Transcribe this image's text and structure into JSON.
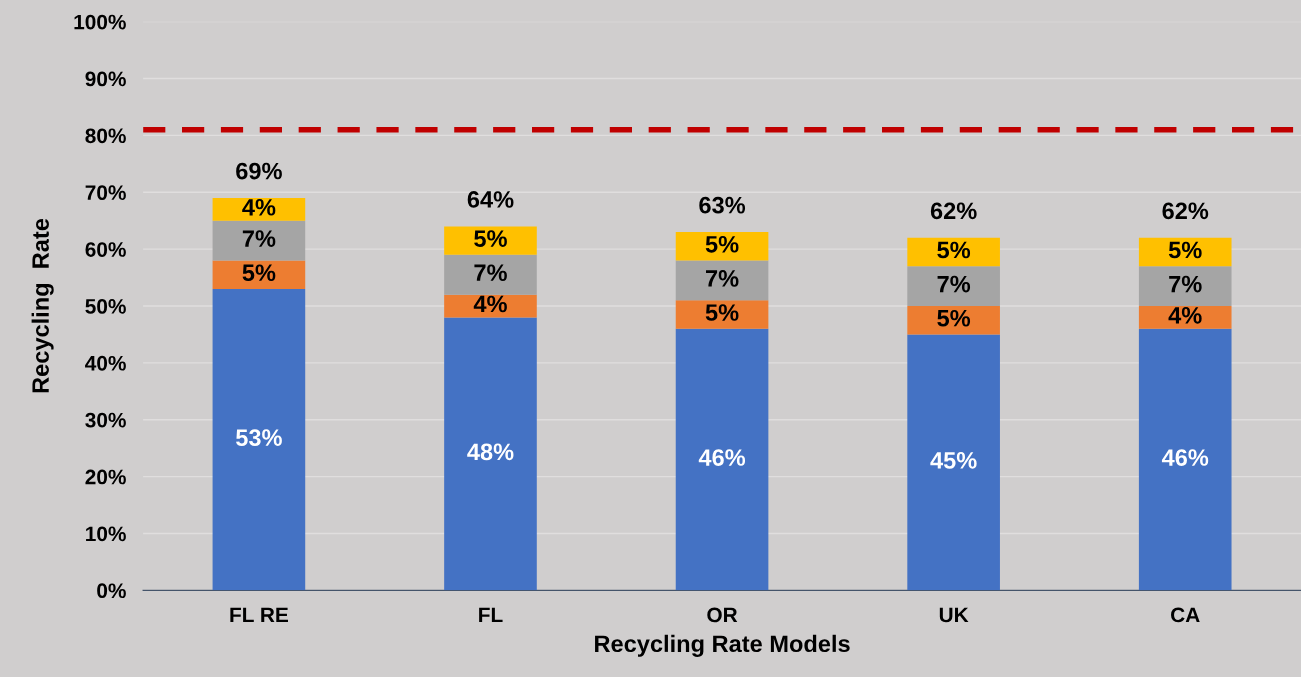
{
  "chart_data": {
    "type": "bar",
    "stacked": true,
    "xlabel": "Recycling Rate Models",
    "ylabel": "Recycling  Rate",
    "categories": [
      "FL RE",
      "FL",
      "OR",
      "UK",
      "CA"
    ],
    "series": [
      {
        "color": "#4472c4",
        "values": [
          53,
          48,
          46,
          45,
          46
        ],
        "value_labels": [
          "53%",
          "48%",
          "46%",
          "45%",
          "46%"
        ]
      },
      {
        "color": "#ed7d31",
        "values": [
          5,
          4,
          5,
          5,
          4
        ],
        "value_labels": [
          "5%",
          "4%",
          "5%",
          "5%",
          "4%"
        ]
      },
      {
        "color": "#a5a5a5",
        "values": [
          7,
          7,
          7,
          7,
          7
        ],
        "value_labels": [
          "7%",
          "7%",
          "7%",
          "7%",
          "7%"
        ]
      },
      {
        "color": "#ffc000",
        "values": [
          4,
          5,
          5,
          5,
          5
        ],
        "value_labels": [
          "4%",
          "5%",
          "5%",
          "5%",
          "5%"
        ]
      }
    ],
    "totals": [
      "69%",
      "64%",
      "63%",
      "62%",
      "62%"
    ],
    "ylim": [
      0,
      100
    ],
    "yticks": [
      {
        "value": 0,
        "label": "0%"
      },
      {
        "value": 10,
        "label": "10%"
      },
      {
        "value": 20,
        "label": "20%"
      },
      {
        "value": 30,
        "label": "30%"
      },
      {
        "value": 40,
        "label": "40%"
      },
      {
        "value": 50,
        "label": "50%"
      },
      {
        "value": 60,
        "label": "60%"
      },
      {
        "value": 70,
        "label": "70%"
      },
      {
        "value": 80,
        "label": "80%"
      },
      {
        "value": 90,
        "label": "90%"
      },
      {
        "value": 100,
        "label": "100%"
      }
    ],
    "ref_lines": [
      {
        "axis": "y",
        "value": 81,
        "color": "#c00000",
        "line_style": "dashed"
      }
    ],
    "grid": "y",
    "legend": false
  }
}
